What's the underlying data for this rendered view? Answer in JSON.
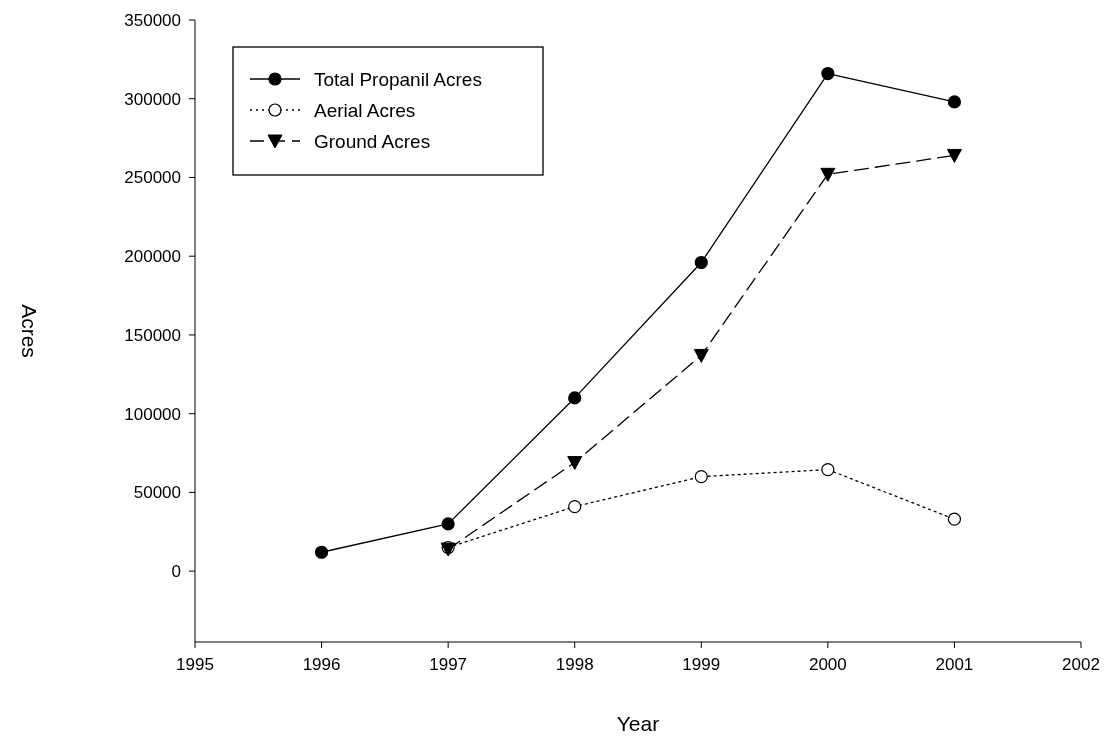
{
  "chart_data": {
    "type": "line",
    "xlabel": "Year",
    "ylabel": "Acres",
    "x": [
      1996,
      1997,
      1998,
      1999,
      2000,
      2001
    ],
    "series": [
      {
        "name": "Total Propanil Acres",
        "color": "#000000",
        "marker": "circle",
        "line_style": "solid",
        "values": [
          12000,
          30000,
          110000,
          196000,
          316000,
          298000
        ]
      },
      {
        "name": "Aerial Acres",
        "color": "#000000",
        "marker": "circle",
        "line_style": "dotted",
        "values": [
          null,
          15000,
          41000,
          60000,
          64500,
          33000
        ]
      },
      {
        "name": "Ground Acres",
        "color": "#000000",
        "marker": "triangle",
        "line_style": "dashed",
        "values": [
          null,
          14000,
          69000,
          137000,
          252000,
          264000
        ]
      }
    ],
    "xlim": [
      1995,
      2002
    ],
    "xticks": [
      1995,
      1996,
      1997,
      1998,
      1999,
      2000,
      2001,
      2002
    ],
    "ylim": [
      -45000,
      350000
    ],
    "yticks": [
      0,
      50000,
      100000,
      150000,
      200000,
      250000,
      300000,
      350000
    ],
    "legend": "top left",
    "grid": false
  }
}
